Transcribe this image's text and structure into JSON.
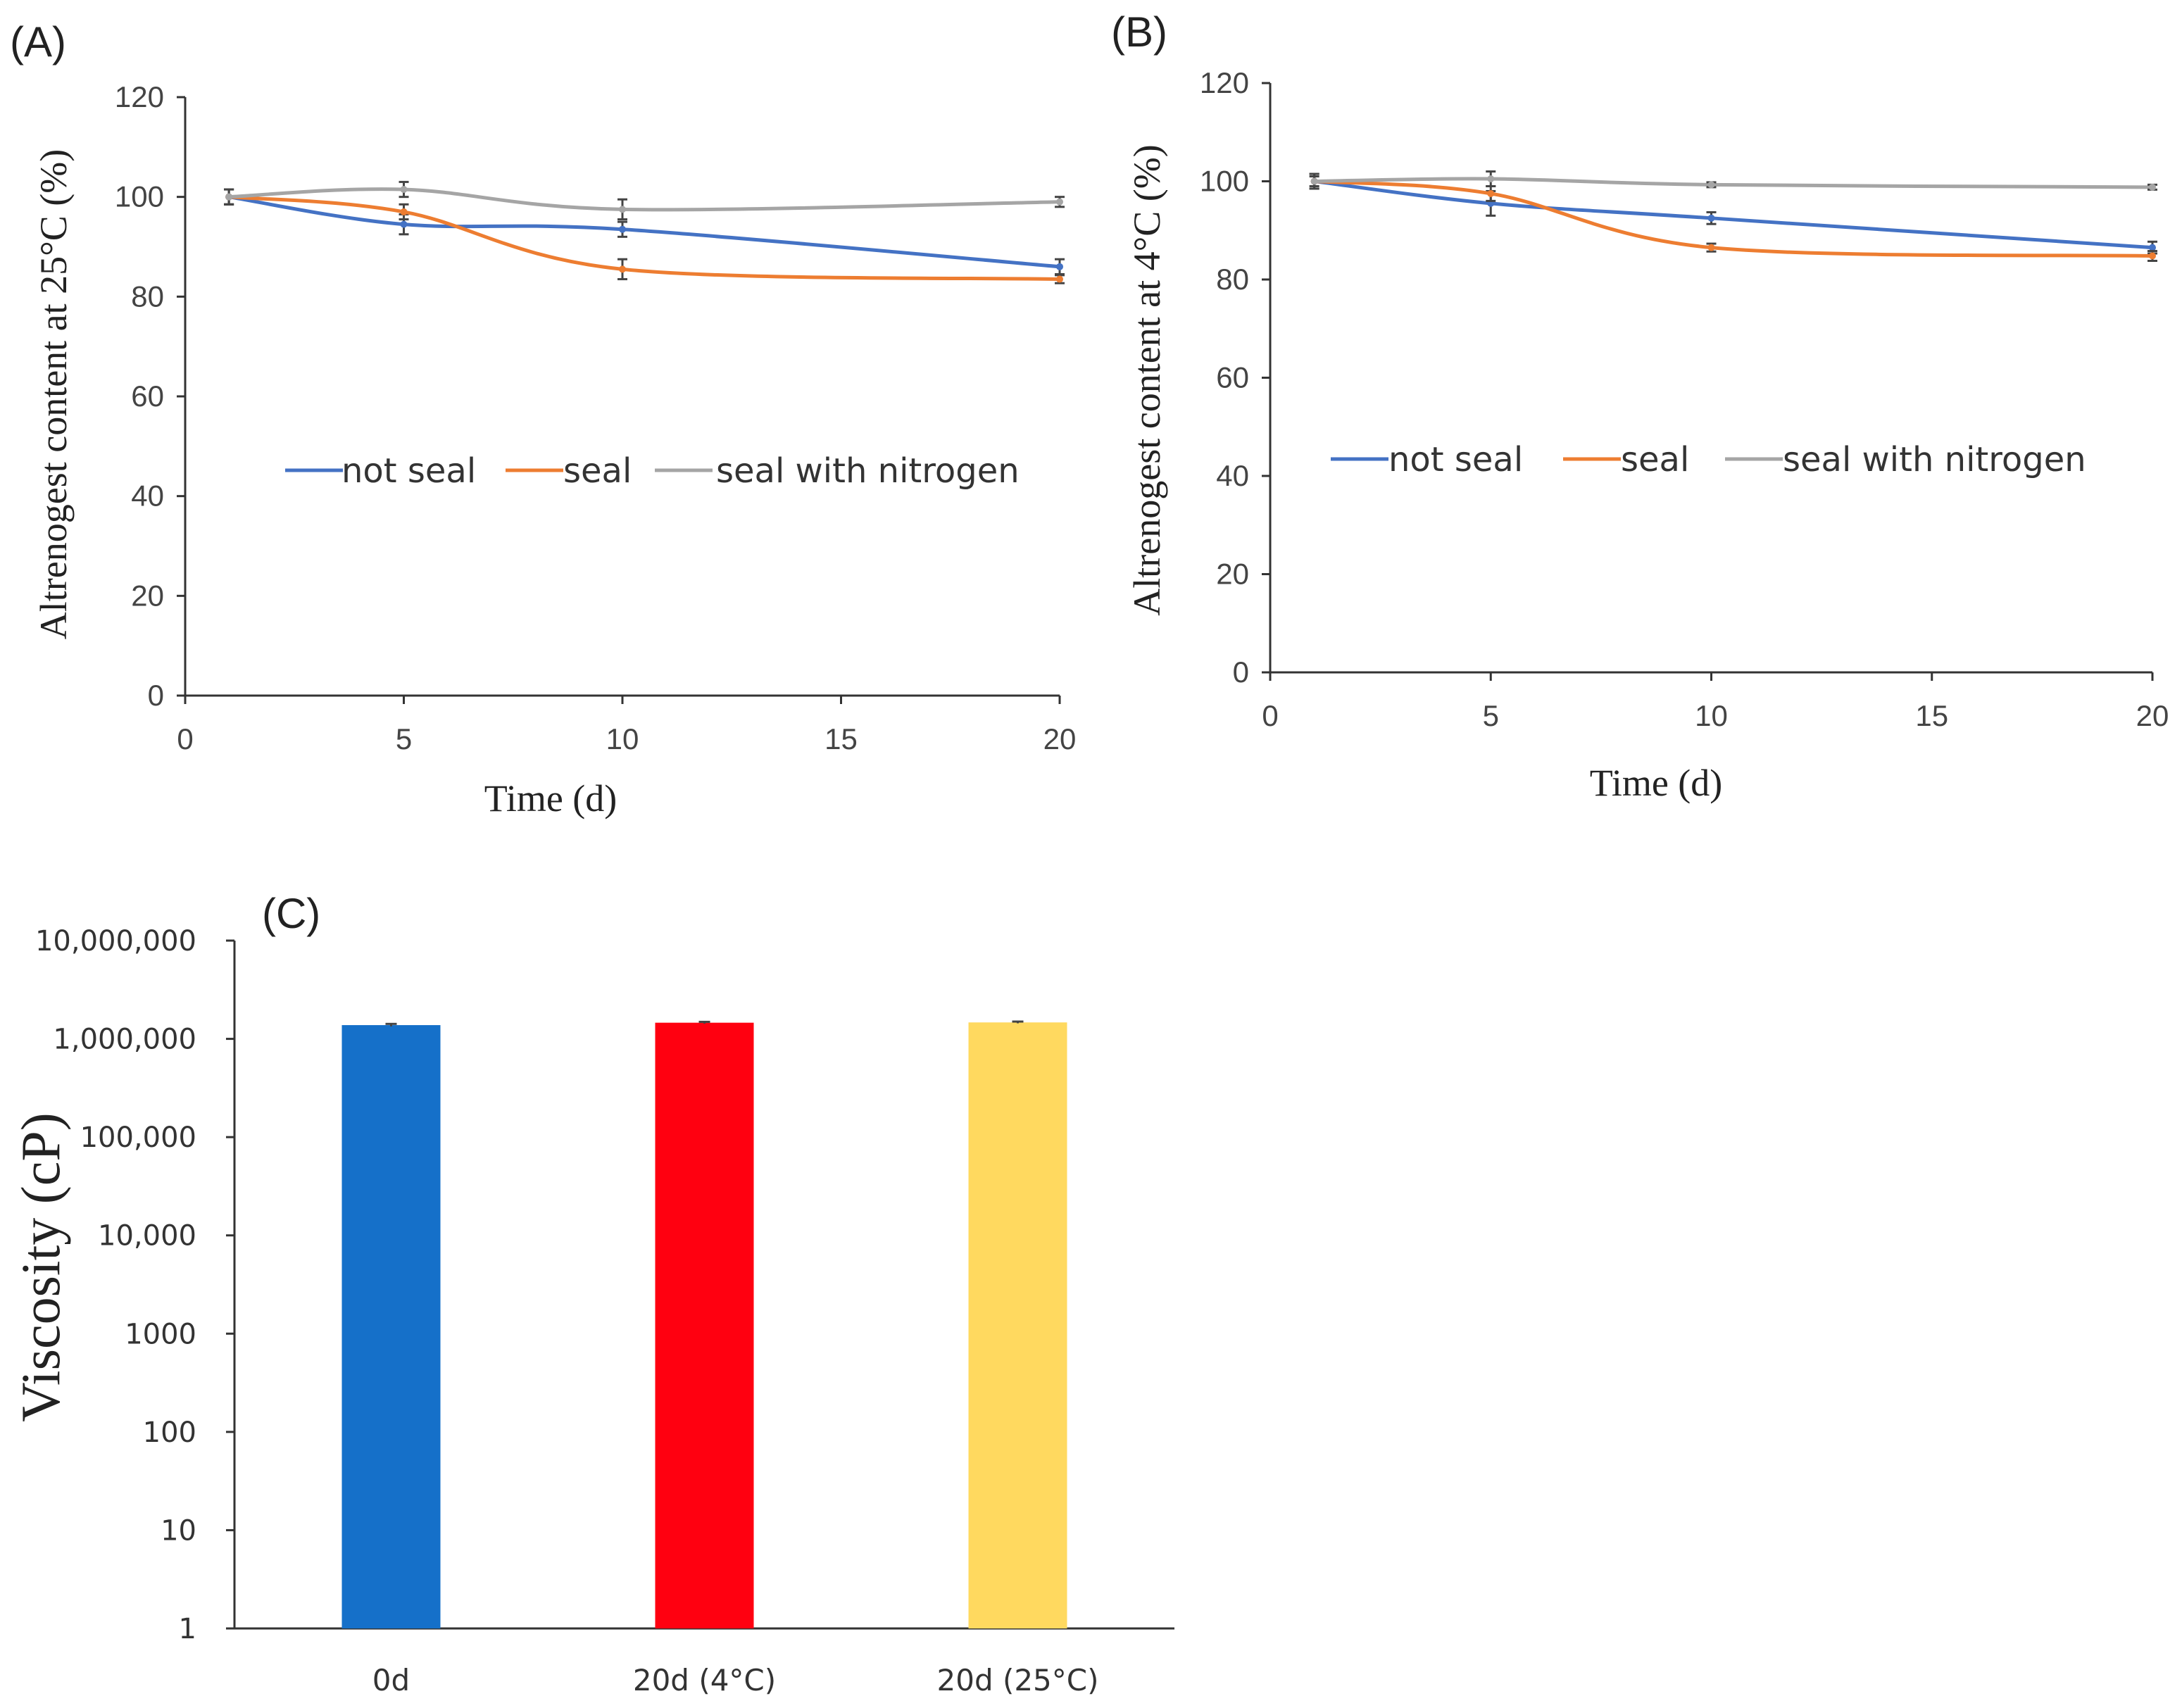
{
  "colors": {
    "not_seal": "#4472C4",
    "seal": "#ED7D31",
    "seal_nitrogen": "#A5A5A5",
    "bar_0d": "#1570C9",
    "bar_20d_4": "#FF0010",
    "bar_20d_25": "#FFD95F",
    "axis": "#333333",
    "error_bar": "#444444"
  },
  "chart_data": [
    {
      "panel": "(A)",
      "type": "line",
      "smooth": true,
      "xlabel": "Time (d)",
      "ylabel": "Altrenogest content at 25°C (%)",
      "xlim": [
        0,
        20
      ],
      "ylim": [
        0,
        120
      ],
      "xticks": [
        0,
        5,
        10,
        15,
        20
      ],
      "yticks": [
        0,
        20,
        40,
        60,
        80,
        100,
        120
      ],
      "legend_position": "middle",
      "series": [
        {
          "name": "not seal",
          "color_key": "not_seal",
          "x": [
            1,
            5,
            10,
            20
          ],
          "y": [
            100,
            94.5,
            93.5,
            86
          ],
          "err": [
            1.5,
            2.0,
            1.5,
            1.5
          ]
        },
        {
          "name": "seal",
          "color_key": "seal",
          "x": [
            1,
            5,
            10,
            20
          ],
          "y": [
            100,
            97,
            85.5,
            83.5
          ],
          "err": [
            1.5,
            1.5,
            2.0,
            0.8
          ]
        },
        {
          "name": "seal with nitrogen",
          "color_key": "seal_nitrogen",
          "x": [
            1,
            5,
            10,
            20
          ],
          "y": [
            100,
            101.5,
            97.5,
            99
          ],
          "err": [
            1.5,
            1.5,
            2.0,
            1.0
          ]
        }
      ]
    },
    {
      "panel": "(B)",
      "type": "line",
      "smooth": true,
      "xlabel": "Time (d)",
      "ylabel": "Altrenogest content at 4°C (%)",
      "xlim": [
        0,
        20
      ],
      "ylim": [
        0,
        120
      ],
      "xticks": [
        0,
        5,
        10,
        15,
        20
      ],
      "yticks": [
        0,
        20,
        40,
        60,
        80,
        100,
        120
      ],
      "legend_position": "middle",
      "series": [
        {
          "name": "not seal",
          "color_key": "not_seal",
          "x": [
            1,
            5,
            10,
            20
          ],
          "y": [
            100,
            95.5,
            92.5,
            86.5
          ],
          "err": [
            1.5,
            2.5,
            1.2,
            1.2
          ]
        },
        {
          "name": "seal",
          "color_key": "seal",
          "x": [
            1,
            5,
            10,
            20
          ],
          "y": [
            100,
            97.5,
            86.5,
            84.8
          ],
          "err": [
            1.5,
            1.5,
            0.8,
            1.0
          ]
        },
        {
          "name": "seal with nitrogen",
          "color_key": "seal_nitrogen",
          "x": [
            1,
            5,
            10,
            20
          ],
          "y": [
            100,
            100.5,
            99.3,
            98.8
          ],
          "err": [
            1.0,
            1.5,
            0.5,
            0.5
          ]
        }
      ]
    },
    {
      "panel": "(C)",
      "type": "bar",
      "yscale": "log",
      "ylabel": "Viscosity (cP)",
      "ylim": [
        1,
        10000000
      ],
      "yticks": [
        1,
        10,
        100,
        1000,
        10000,
        100000,
        1000000,
        10000000
      ],
      "ytick_labels": [
        "1",
        "10",
        "100",
        "1000",
        "10,000",
        "100,000",
        "1,000,000",
        "10,000,000"
      ],
      "categories": [
        "0d",
        "20d (4°C)",
        "20d (25°C)"
      ],
      "values": [
        1380000,
        1460000,
        1470000
      ],
      "err": [
        40000,
        30000,
        30000
      ],
      "color_keys": [
        "bar_0d",
        "bar_20d_4",
        "bar_20d_25"
      ]
    }
  ]
}
